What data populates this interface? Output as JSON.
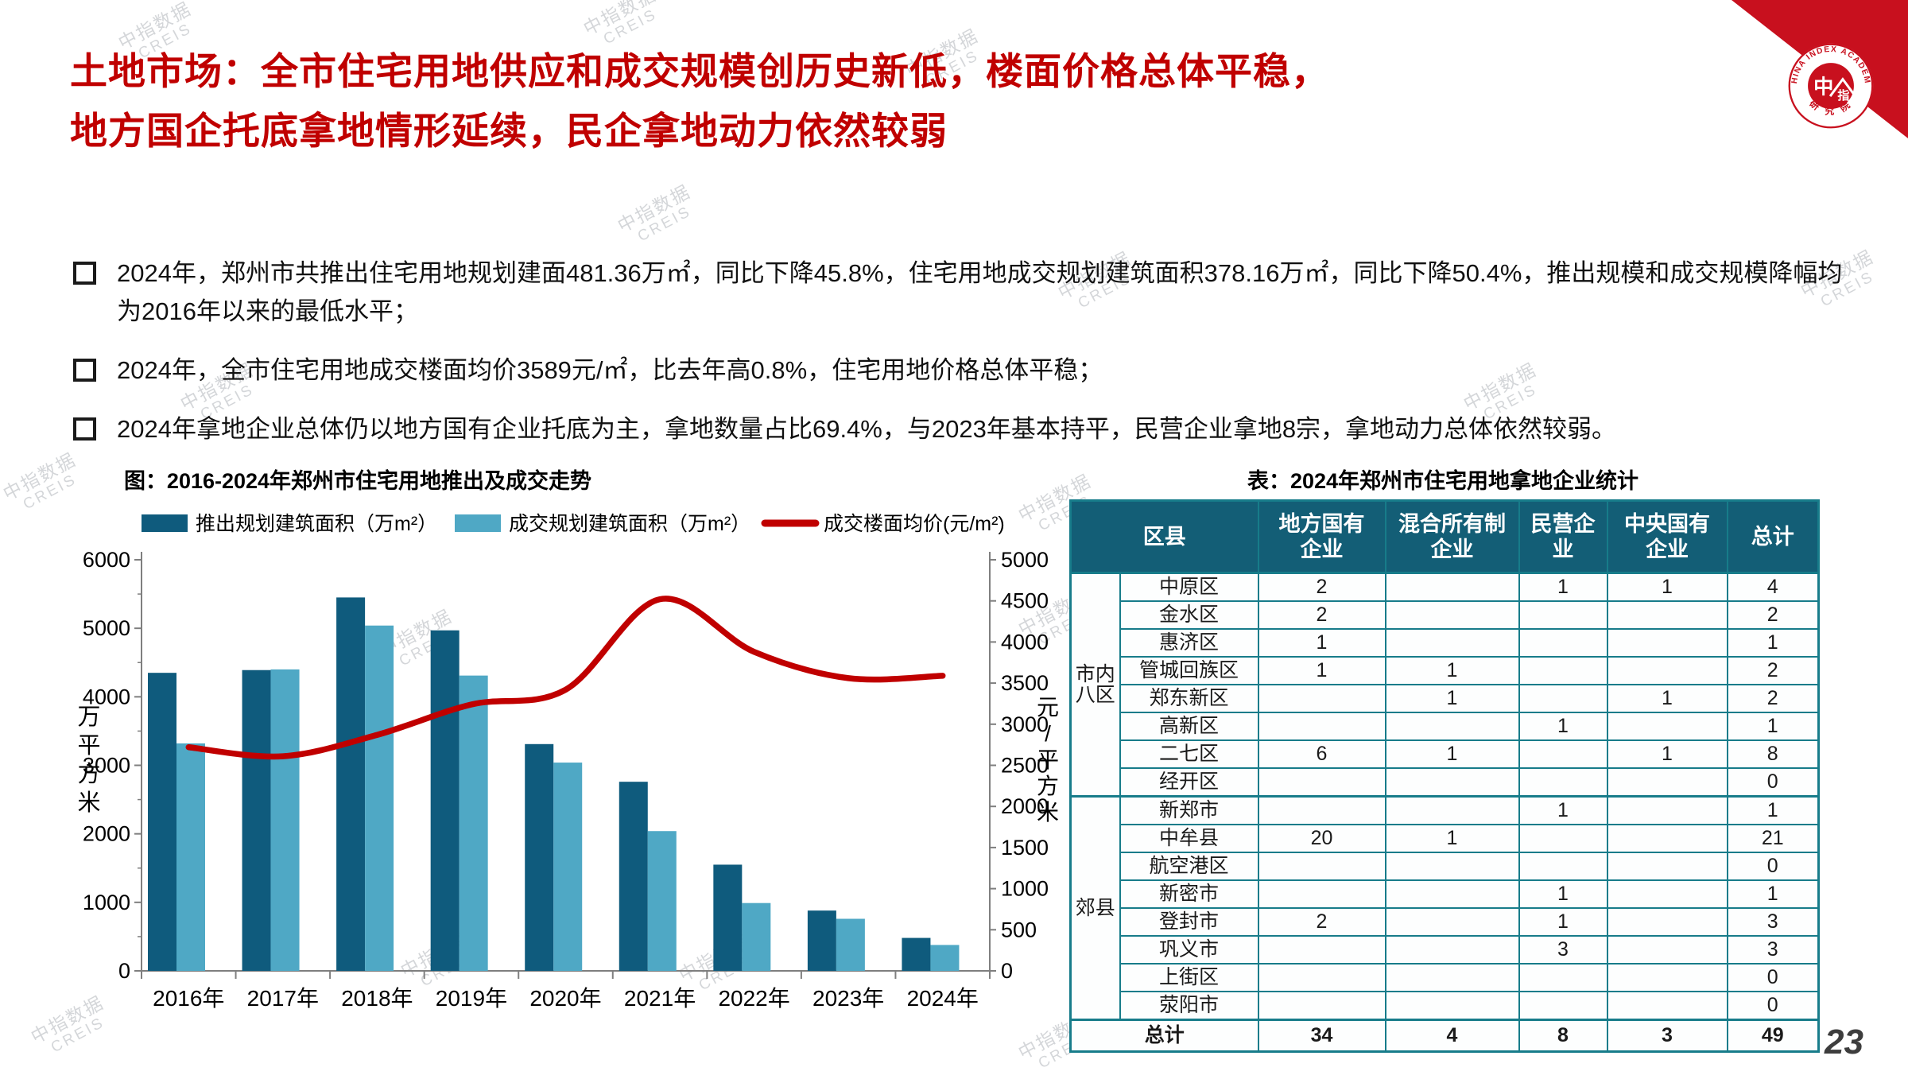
{
  "title": {
    "line1": "土地市场：全市住宅用地供应和成交规模创历史新低，楼面价格总体平稳，",
    "line2": "地方国企托底拿地情形延续，民企拿地动力依然较弱"
  },
  "bullets": [
    "2024年，郑州市共推出住宅用地规划建面481.36万㎡，同比下降45.8%，住宅用地成交规划建筑面积378.16万㎡，同比下降50.4%，推出规模和成交规模降幅均为2016年以来的最低水平；",
    "2024年，全市住宅用地成交楼面均价3589元/㎡，比去年高0.8%，住宅用地价格总体平稳；",
    "2024年拿地企业总体仍以地方国有企业托底为主，拿地数量占比69.4%，与2023年基本持平，民营企业拿地8宗，拿地动力总体依然较弱。"
  ],
  "chart_title": "图：2016-2024年郑州市住宅用地推出及成交走势",
  "chart_data": {
    "type": "bar+line",
    "categories": [
      "2016年",
      "2017年",
      "2018年",
      "2019年",
      "2020年",
      "2021年",
      "2022年",
      "2023年",
      "2024年"
    ],
    "series": [
      {
        "name": "推出规划建筑面积（万m²）",
        "type": "bar",
        "color": "#0f5b7d",
        "axis": "left",
        "values": [
          4350,
          4390,
          5450,
          4970,
          3310,
          2760,
          1550,
          880,
          481
        ]
      },
      {
        "name": "成交规划建筑面积（万m²）",
        "type": "bar",
        "color": "#4fa8c5",
        "axis": "left",
        "values": [
          3320,
          4400,
          5040,
          4310,
          3040,
          2040,
          990,
          760,
          378
        ]
      },
      {
        "name": "成交楼面均价(元/m²)",
        "type": "line",
        "color": "#c00000",
        "axis": "right",
        "values": [
          2720,
          2610,
          2870,
          3240,
          3420,
          4520,
          3880,
          3560,
          3589
        ]
      }
    ],
    "left_axis": {
      "title": "万平方米",
      "min": 0,
      "max": 6000,
      "step": 1000,
      "minor_step": 500
    },
    "right_axis": {
      "title": "元/平方米",
      "min": 0,
      "max": 5000,
      "step": 500
    },
    "grid": false,
    "legend_position": "top"
  },
  "table": {
    "title": "表：2024年郑州市住宅用地拿地企业统计",
    "col_headers": [
      "区县",
      "地方国有\n企业",
      "混合所有制\n企业",
      "民营企\n业",
      "中央国有\n企业",
      "总计"
    ],
    "groups": [
      {
        "name": "市内\n八区",
        "rows": [
          {
            "name": "中原区",
            "values": [
              "2",
              "",
              "1",
              "1",
              "4"
            ]
          },
          {
            "name": "金水区",
            "values": [
              "2",
              "",
              "",
              "",
              "2"
            ]
          },
          {
            "name": "惠济区",
            "values": [
              "1",
              "",
              "",
              "",
              "1"
            ]
          },
          {
            "name": "管城回族区",
            "values": [
              "1",
              "1",
              "",
              "",
              "2"
            ]
          },
          {
            "name": "郑东新区",
            "values": [
              "",
              "1",
              "",
              "1",
              "2"
            ]
          },
          {
            "name": "高新区",
            "values": [
              "",
              "",
              "1",
              "",
              "1"
            ]
          },
          {
            "name": "二七区",
            "values": [
              "6",
              "1",
              "",
              "1",
              "8"
            ]
          },
          {
            "name": "经开区",
            "values": [
              "",
              "",
              "",
              "",
              "0"
            ]
          }
        ]
      },
      {
        "name": "郊县",
        "rows": [
          {
            "name": "新郑市",
            "values": [
              "",
              "",
              "1",
              "",
              "1"
            ]
          },
          {
            "name": "中牟县",
            "values": [
              "20",
              "1",
              "",
              "",
              "21"
            ]
          },
          {
            "name": "航空港区",
            "values": [
              "",
              "",
              "",
              "",
              "0"
            ]
          },
          {
            "name": "新密市",
            "values": [
              "",
              "",
              "1",
              "",
              "1"
            ]
          },
          {
            "name": "登封市",
            "values": [
              "2",
              "",
              "1",
              "",
              "3"
            ]
          },
          {
            "name": "巩义市",
            "values": [
              "",
              "",
              "3",
              "",
              "3"
            ]
          },
          {
            "name": "上街区",
            "values": [
              "",
              "",
              "",
              "",
              "0"
            ]
          },
          {
            "name": "荥阳市",
            "values": [
              "",
              "",
              "",
              "",
              "0"
            ]
          }
        ]
      }
    ],
    "total_row": {
      "label": "总计",
      "values": [
        "34",
        "4",
        "8",
        "3",
        "49"
      ]
    }
  },
  "logo": {
    "arc_text_top": "CHINA INDEX ACADEMY",
    "arc_text_bottom": "研 究 院",
    "center_char_left": "中",
    "center_char_right": "指"
  },
  "watermark": {
    "line1": "中指数据",
    "line2": "CREIS"
  },
  "page_number": "23",
  "colors": {
    "title_red": "#c00000",
    "banner_red": "#c8101e",
    "bar_dark": "#0f5b7d",
    "bar_light": "#4fa8c5",
    "line_red": "#c00000",
    "table_header_bg": "#135e76",
    "table_border": "#177c8a",
    "axis_gray": "#7f7f7f"
  }
}
